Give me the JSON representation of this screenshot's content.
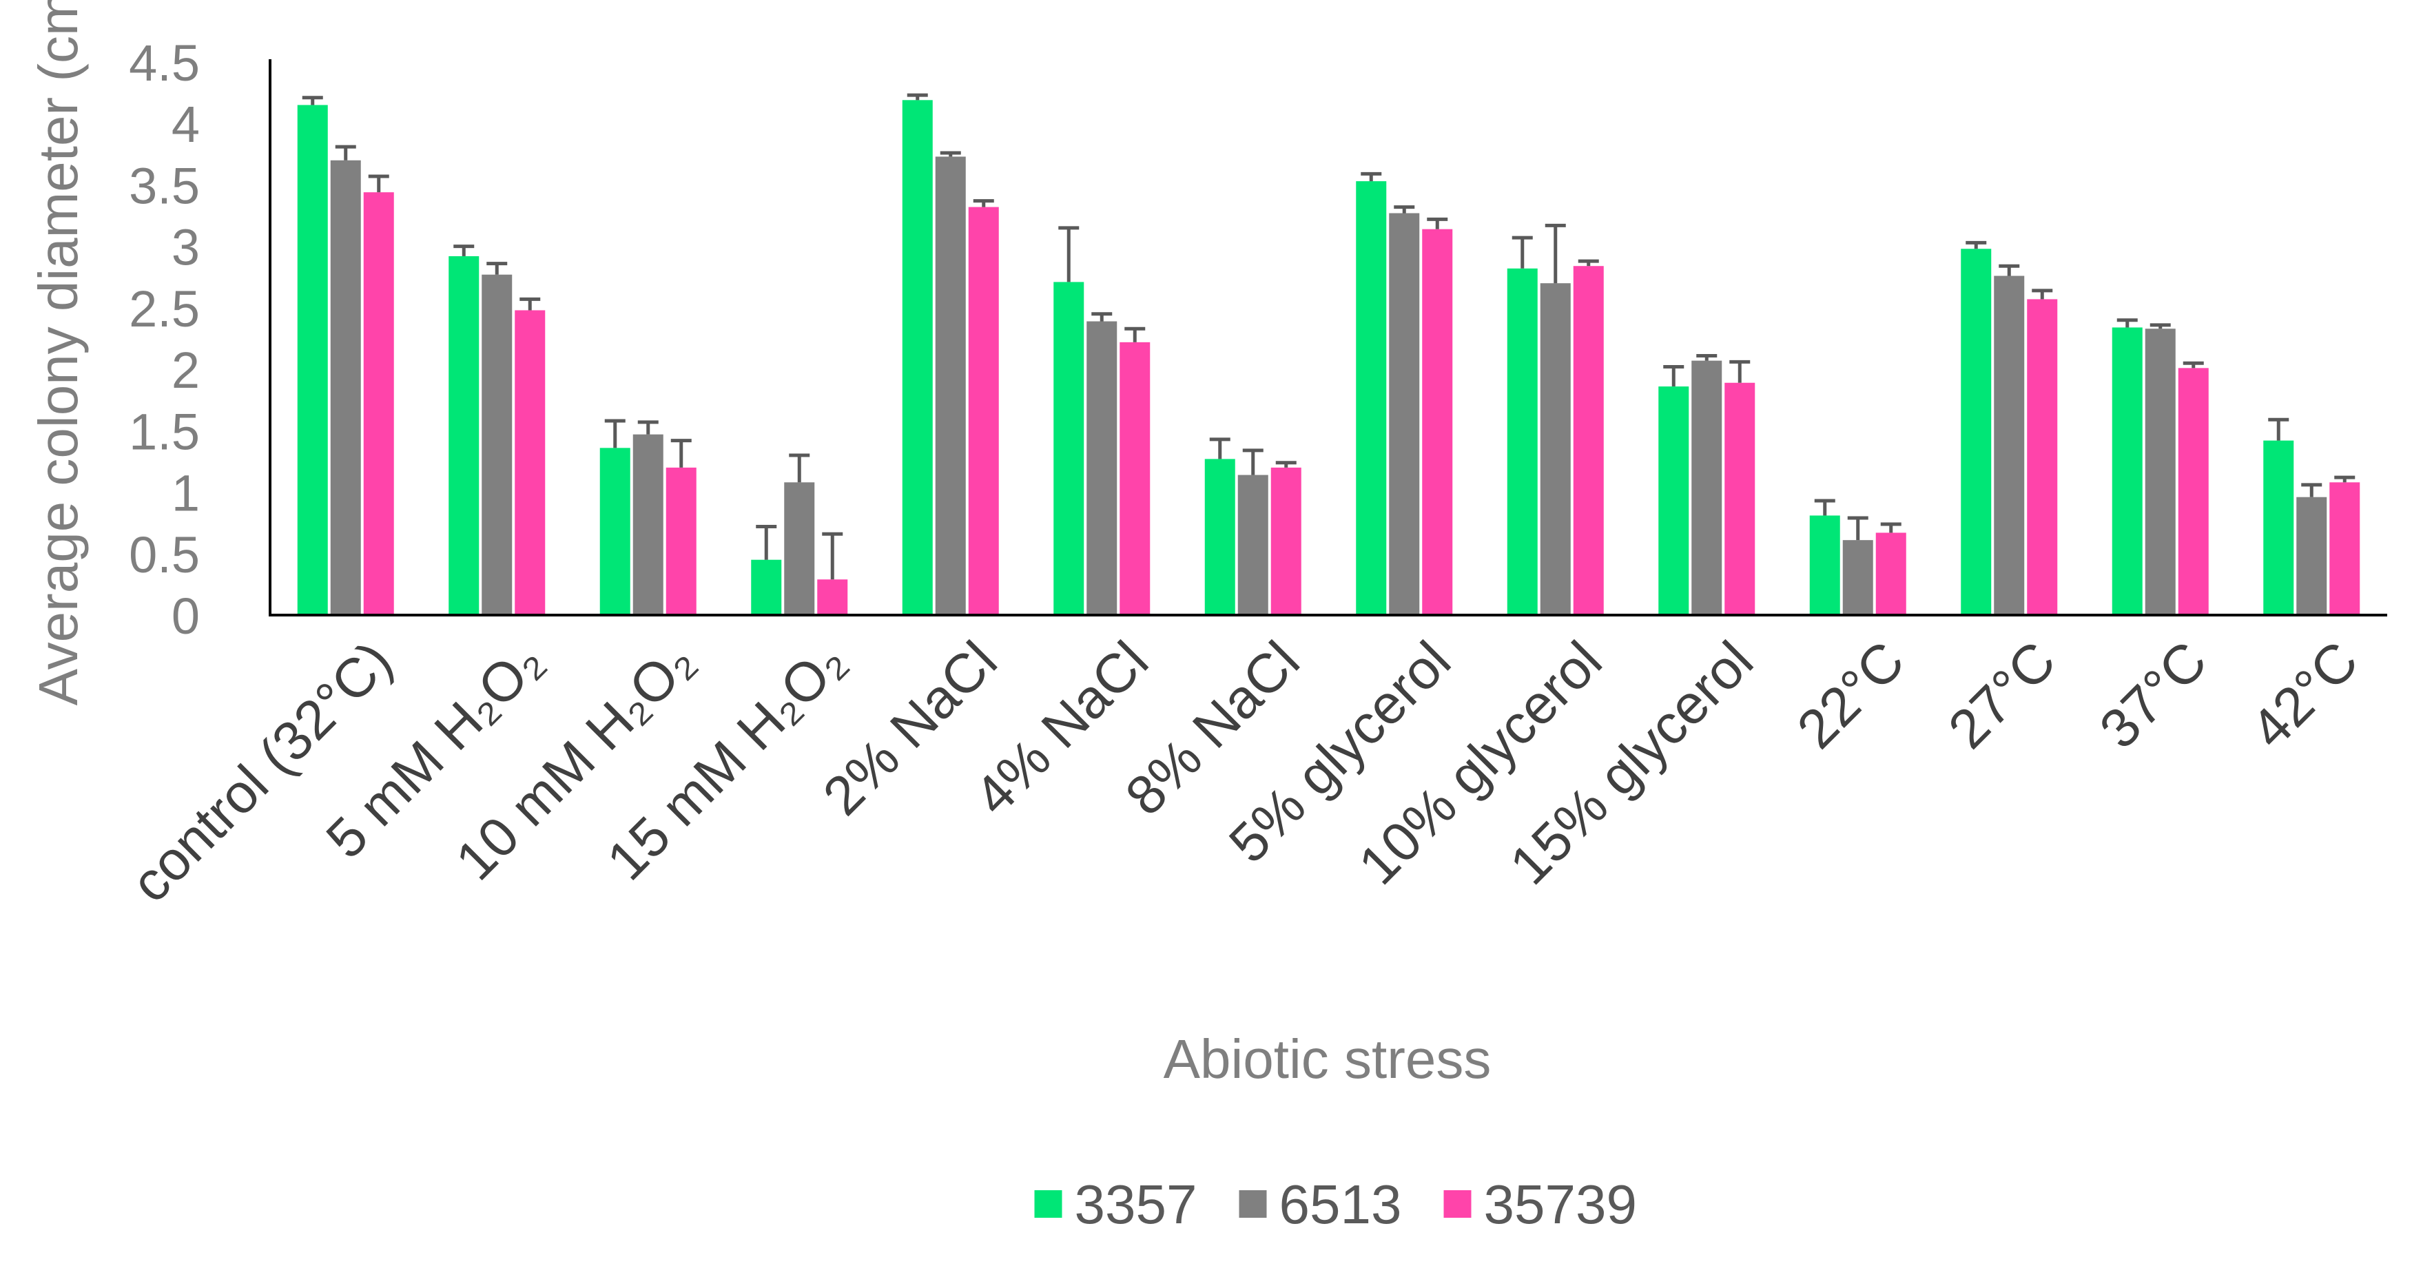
{
  "chart_data": {
    "type": "bar",
    "title": "",
    "xlabel": "Abiotic stress",
    "ylabel": "Average colony diameter (cm)",
    "ylim": [
      0,
      4.5
    ],
    "yticks": [
      "0",
      "0.5",
      "1",
      "1.5",
      "2",
      "2.5",
      "3",
      "3.5",
      "4",
      "4.5"
    ],
    "grid": false,
    "legend_position": "bottom",
    "categories": [
      "control (32°C)",
      "5 mM H₂O₂",
      "10 mM H₂O₂",
      "15 mM H₂O₂",
      "2% NaCl",
      "4% NaCl",
      "8% NaCl",
      "5% glycerol",
      "10% glycerol",
      "15% glycerol",
      "22°C",
      "27°C",
      "37°C",
      "42°C"
    ],
    "series": [
      {
        "name": "3357",
        "color": "#00E676",
        "values": [
          4.15,
          2.92,
          1.36,
          0.45,
          4.19,
          2.71,
          1.27,
          3.53,
          2.82,
          1.86,
          0.81,
          2.98,
          2.34,
          1.42
        ],
        "errors": [
          0.06,
          0.08,
          0.22,
          0.27,
          0.04,
          0.44,
          0.16,
          0.06,
          0.25,
          0.16,
          0.12,
          0.05,
          0.06,
          0.17
        ]
      },
      {
        "name": "6513",
        "color": "#808080",
        "values": [
          3.7,
          2.77,
          1.47,
          1.08,
          3.73,
          2.39,
          1.14,
          3.27,
          2.7,
          2.07,
          0.61,
          2.76,
          2.33,
          0.96
        ],
        "errors": [
          0.11,
          0.09,
          0.1,
          0.22,
          0.03,
          0.06,
          0.2,
          0.05,
          0.47,
          0.04,
          0.18,
          0.08,
          0.03,
          0.1
        ]
      },
      {
        "name": "35739",
        "color": "#FF44AA",
        "values": [
          3.44,
          2.48,
          1.2,
          0.29,
          3.32,
          2.22,
          1.2,
          3.14,
          2.84,
          1.89,
          0.67,
          2.57,
          2.01,
          1.08
        ],
        "errors": [
          0.13,
          0.09,
          0.22,
          0.37,
          0.05,
          0.11,
          0.04,
          0.08,
          0.04,
          0.17,
          0.07,
          0.07,
          0.04,
          0.04
        ]
      }
    ]
  }
}
